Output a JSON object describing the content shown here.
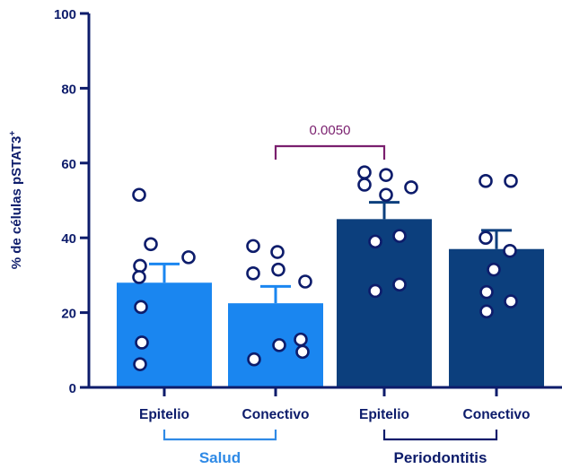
{
  "chart_data": {
    "type": "bar",
    "title": "",
    "xlabel": "",
    "ylabel": "% de células pSTAT3",
    "ylabel_superscript": "+",
    "ylim": [
      0,
      100
    ],
    "yticks": [
      0,
      20,
      40,
      60,
      80,
      100
    ],
    "grid": false,
    "categories": [
      "Epitelio",
      "Conectivo",
      "Epitelio",
      "Conectivo"
    ],
    "groups": [
      {
        "label": "Salud",
        "categories": [
          0,
          1
        ],
        "color": "#2f8ae6"
      },
      {
        "label": "Periodontitis",
        "categories": [
          2,
          3
        ],
        "color": "#0d1c6b"
      }
    ],
    "values": [
      28,
      22.5,
      45,
      37
    ],
    "errors": [
      5,
      4.5,
      4.5,
      5
    ],
    "bar_colors": [
      "#1a86f0",
      "#1a86f0",
      "#0c3f7d",
      "#0c3f7d"
    ],
    "points": [
      [
        51.5,
        38.3,
        32.5,
        34.8,
        29.5,
        21.5,
        12.0,
        6.2
      ],
      [
        37.8,
        36.2,
        30.5,
        31.5,
        28.3,
        12.8,
        11.3,
        9.5,
        7.5
      ],
      [
        57.5,
        56.8,
        54.2,
        53.5,
        51.5,
        40.5,
        39.0,
        27.5,
        25.8
      ],
      [
        55.2,
        55.2,
        40.0,
        36.5,
        31.5,
        25.5,
        23.0,
        20.3
      ]
    ],
    "comparison": {
      "from": 1,
      "to": 2,
      "label": "0.0050",
      "color": "#7a1f6e"
    },
    "axis_color": "#0d1c6b",
    "point_color": "#0d1c6b"
  }
}
